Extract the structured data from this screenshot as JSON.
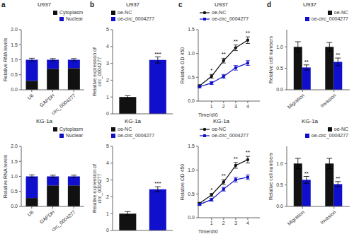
{
  "chart_data": [
    {
      "type": "bar",
      "stacked": true,
      "panel_label": "a",
      "title": "U937",
      "categories": [
        "U6",
        "GAPDH",
        "circ_0004277"
      ],
      "series": [
        {
          "name": "Cytoplasm",
          "color": "#111111",
          "values": [
            0.3,
            0.7,
            0.72
          ]
        },
        {
          "name": "Nuclear",
          "color": "#1010cc",
          "values": [
            0.7,
            0.3,
            0.28
          ],
          "errors": [
            0.05,
            0.04,
            0.04
          ]
        }
      ],
      "ylabel": "Relative RNA levels",
      "ylim": [
        0,
        2.0
      ],
      "yticks": [
        {
          "value": 0,
          "label": "0.0"
        },
        0.5,
        {
          "value": 1,
          "label": "1.0"
        },
        1.5,
        {
          "value": 2,
          "label": "2.0"
        }
      ],
      "legend": "upper right"
    },
    {
      "type": "bar",
      "panel_label": "b",
      "title": "U937",
      "categories": [
        "oe-NC",
        "oe-circ_0004277"
      ],
      "values": [
        1.0,
        3.2
      ],
      "errors": [
        0.08,
        0.18
      ],
      "colors": [
        "#111111",
        "#1010cc"
      ],
      "ylabel": "Relative expression of\ncirc_0004277",
      "ylim": [
        0,
        5
      ],
      "yticks": [
        0,
        1,
        2,
        3,
        4,
        5
      ],
      "tick_labels": "y",
      "legend": "upper left",
      "annotations": [
        {
          "x": "oe-circ_0004277",
          "text": "***"
        }
      ]
    },
    {
      "type": "line",
      "panel_label": "c",
      "title": "U937",
      "x": [
        0,
        1,
        2,
        3,
        4
      ],
      "series": [
        {
          "name": "oe-NC",
          "color": "#111111",
          "marker": "circle",
          "values": [
            0.32,
            0.52,
            0.85,
            1.12,
            1.28
          ],
          "errors": [
            0.02,
            0.04,
            0.05,
            0.06,
            0.07
          ]
        },
        {
          "name": "oe-circ_0004277",
          "color": "#1010cc",
          "marker": "square",
          "values": [
            0.3,
            0.38,
            0.52,
            0.7,
            0.8
          ],
          "errors": [
            0.02,
            0.03,
            0.04,
            0.05,
            0.05
          ]
        }
      ],
      "xlabel": "Time(d)0",
      "ylabel": "Relative OD 450",
      "xlim": [
        -0.1,
        5
      ],
      "xticks": [
        1,
        2,
        3,
        4
      ],
      "ylim": [
        0.0,
        1.5
      ],
      "yticks": [
        {
          "value": 0,
          "label": "0.0"
        },
        0.5,
        {
          "value": 1,
          "label": "1.0"
        },
        1.5
      ],
      "legend": "upper left",
      "annotations": [
        {
          "x": 1,
          "text": "*"
        },
        {
          "x": 2,
          "text": "**"
        },
        {
          "x": 3,
          "text": "**"
        },
        {
          "x": 4,
          "text": "**"
        }
      ]
    },
    {
      "type": "bar",
      "panel_label": "d",
      "title": "U937",
      "categories": [
        "Migration",
        "Invasion"
      ],
      "series": [
        {
          "name": "oe-NC",
          "color": "#111111",
          "values": [
            1.0,
            1.0
          ],
          "errors": [
            0.12,
            0.1
          ]
        },
        {
          "name": "oe-circ_0004277",
          "color": "#1010cc",
          "values": [
            0.52,
            0.65
          ],
          "errors": [
            0.06,
            0.09
          ]
        }
      ],
      "ylabel": "Relative cell numbers",
      "ylim": [
        0,
        1.4
      ],
      "yticks": [
        {
          "value": 0,
          "label": "0.0"
        },
        0.5,
        {
          "value": 1,
          "label": "1.0"
        }
      ],
      "legend": "upper right",
      "annotations": [
        {
          "x": "Migration",
          "series": "oe-circ_0004277",
          "text": "**"
        },
        {
          "x": "Invasion",
          "series": "oe-circ_0004277",
          "text": "**"
        }
      ]
    },
    {
      "type": "bar",
      "stacked": true,
      "title": "KG-1a",
      "categories": [
        "U6",
        "GAPDH",
        "circ_0004277"
      ],
      "series": [
        {
          "name": "Cytoplasm",
          "color": "#111111",
          "values": [
            0.28,
            0.7,
            0.7
          ]
        },
        {
          "name": "Nuclear",
          "color": "#1010cc",
          "values": [
            0.72,
            0.3,
            0.3
          ],
          "errors": [
            0.05,
            0.04,
            0.04
          ]
        }
      ],
      "ylabel": "Relative RNA levels",
      "ylim": [
        0,
        2.0
      ],
      "yticks": [
        {
          "value": 0,
          "label": "0.0"
        },
        0.5,
        {
          "value": 1,
          "label": "1.0"
        },
        1.5,
        {
          "value": 2,
          "label": "2.0"
        }
      ],
      "legend": "upper right"
    },
    {
      "type": "bar",
      "title": "KG-1a",
      "categories": [
        "oe-NC",
        "oe-circ_0004277"
      ],
      "values": [
        1.0,
        2.45
      ],
      "errors": [
        0.12,
        0.15
      ],
      "colors": [
        "#111111",
        "#1010cc"
      ],
      "ylabel": "Relative expression of\ncirc_0004277",
      "ylim": [
        0,
        5
      ],
      "yticks": [
        0,
        1,
        2,
        3,
        4,
        5
      ],
      "tick_labels": "y",
      "legend": "upper left",
      "annotations": [
        {
          "x": "oe-circ_0004277",
          "text": "***"
        }
      ]
    },
    {
      "type": "line",
      "title": "KG-1a",
      "x": [
        0,
        1,
        2,
        3,
        4
      ],
      "series": [
        {
          "name": "oe-NC",
          "color": "#111111",
          "marker": "circle",
          "values": [
            0.3,
            0.48,
            0.75,
            1.1,
            1.22
          ],
          "errors": [
            0.02,
            0.03,
            0.05,
            0.06,
            0.07
          ]
        },
        {
          "name": "oe-circ_0004277",
          "color": "#1010cc",
          "marker": "square",
          "values": [
            0.28,
            0.38,
            0.6,
            0.8,
            0.85
          ],
          "errors": [
            0.02,
            0.03,
            0.04,
            0.05,
            0.05
          ]
        }
      ],
      "xlabel": "Time(d)0",
      "ylabel": "Relative OD 450",
      "xlim": [
        -0.1,
        5
      ],
      "xticks": [
        1,
        2,
        3,
        4
      ],
      "ylim": [
        0.0,
        1.5
      ],
      "yticks": [
        {
          "value": 0,
          "label": "0.0"
        },
        0.5,
        {
          "value": 1,
          "label": "1.0"
        },
        1.5
      ],
      "legend": "upper left",
      "annotations": [
        {
          "x": 1,
          "text": "*"
        },
        {
          "x": 2,
          "text": "**"
        },
        {
          "x": 3,
          "text": "**"
        },
        {
          "x": 4,
          "text": "**"
        }
      ]
    },
    {
      "type": "bar",
      "title": "KG-1a",
      "categories": [
        "Migration",
        "Invasion"
      ],
      "series": [
        {
          "name": "oe-NC",
          "color": "#111111",
          "values": [
            1.0,
            1.0
          ],
          "errors": [
            0.12,
            0.12
          ]
        },
        {
          "name": "oe-circ_0004277",
          "color": "#1010cc",
          "values": [
            0.62,
            0.52
          ],
          "errors": [
            0.08,
            0.06
          ]
        }
      ],
      "ylabel": "Relative cell numbers",
      "ylim": [
        0,
        1.4
      ],
      "yticks": [
        {
          "value": 0,
          "label": "0.0"
        },
        0.5,
        {
          "value": 1,
          "label": "1.0"
        }
      ],
      "legend": "upper right",
      "annotations": [
        {
          "x": "Migration",
          "series": "oe-circ_0004277",
          "text": "**"
        },
        {
          "x": "Invasion",
          "series": "oe-circ_0004277",
          "text": "**"
        }
      ]
    }
  ]
}
